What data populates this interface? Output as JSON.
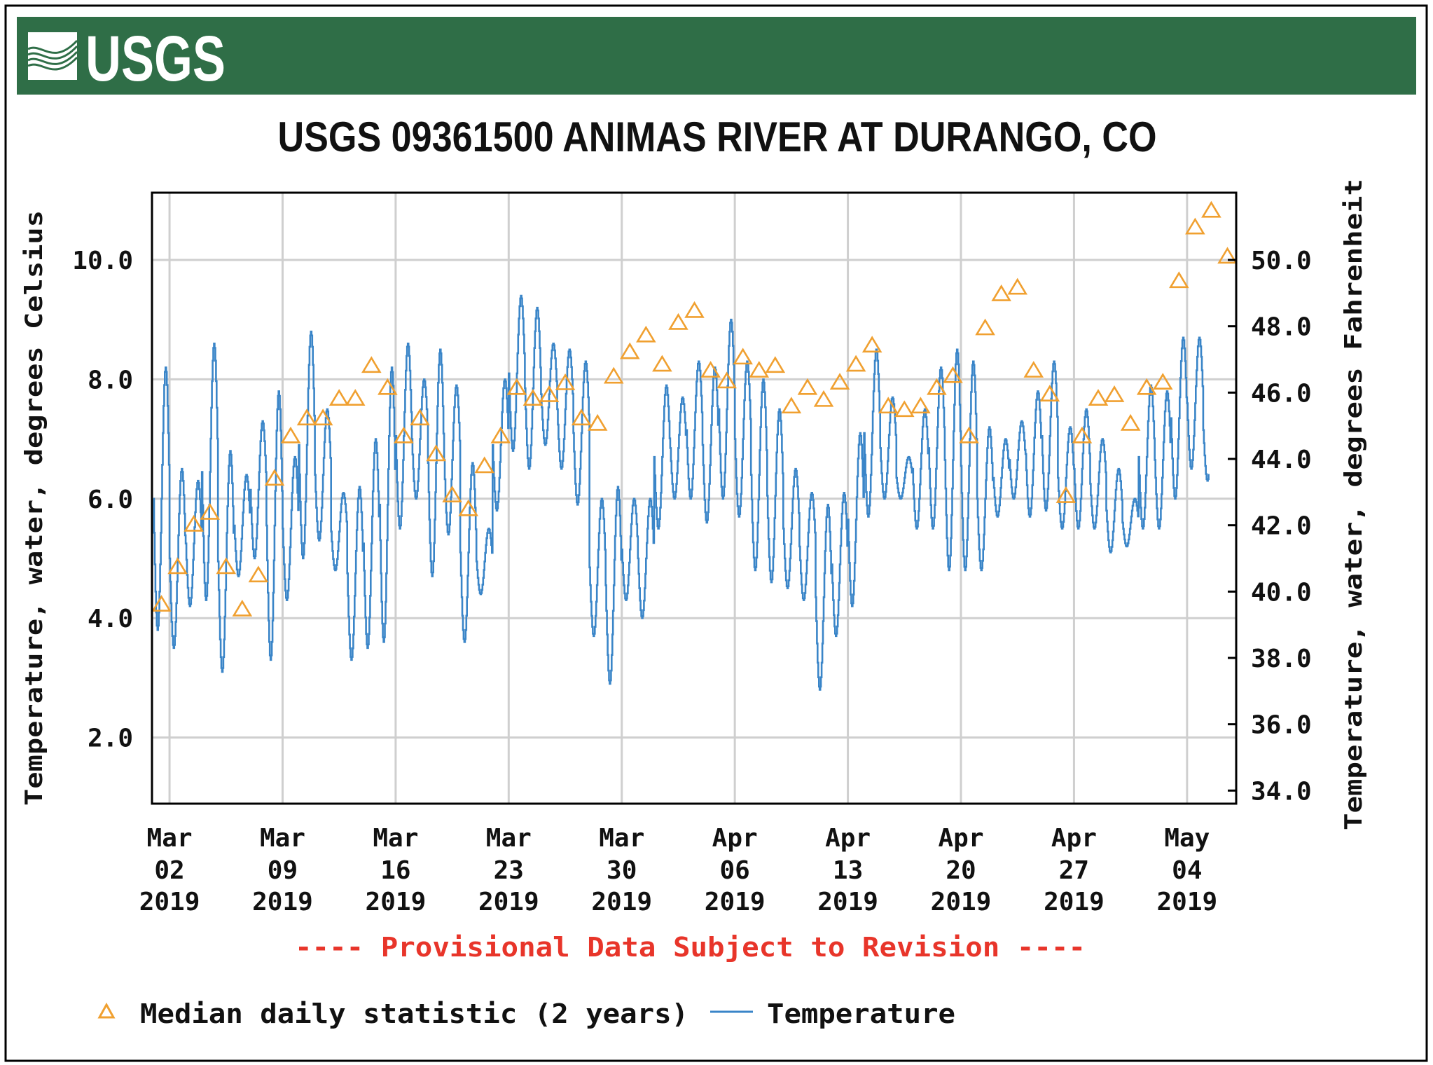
{
  "header": {
    "logo_text": "USGS",
    "banner_color": "#2f6e47"
  },
  "chart_data": {
    "type": "line",
    "title": "USGS 09361500 ANIMAS RIVER AT DURANGO, CO",
    "ylabel": "Temperature, water, degrees Celsius",
    "ylabel_right": "Temperature, water, degrees Fahrenheit",
    "ylim": [
      0.88,
      11.12
    ],
    "yticks": [
      "2.0",
      "4.0",
      "6.0",
      "8.0",
      "10.0"
    ],
    "yticks_right": [
      "34.0",
      "36.0",
      "38.0",
      "40.0",
      "42.0",
      "44.0",
      "46.0",
      "48.0",
      "50.0"
    ],
    "grid": true,
    "x_start_date": "2019-03-01",
    "xticks": [
      {
        "month": "Mar",
        "day": "02",
        "year": "2019",
        "day_offset": 1
      },
      {
        "month": "Mar",
        "day": "09",
        "year": "2019",
        "day_offset": 8
      },
      {
        "month": "Mar",
        "day": "16",
        "year": "2019",
        "day_offset": 15
      },
      {
        "month": "Mar",
        "day": "23",
        "year": "2019",
        "day_offset": 22
      },
      {
        "month": "Mar",
        "day": "30",
        "year": "2019",
        "day_offset": 29
      },
      {
        "month": "Apr",
        "day": "06",
        "year": "2019",
        "day_offset": 36
      },
      {
        "month": "Apr",
        "day": "13",
        "year": "2019",
        "day_offset": 43
      },
      {
        "month": "Apr",
        "day": "20",
        "year": "2019",
        "day_offset": 50
      },
      {
        "month": "Apr",
        "day": "27",
        "year": "2019",
        "day_offset": 57
      },
      {
        "month": "May",
        "day": "04",
        "year": "2019",
        "day_offset": 64
      }
    ],
    "series": [
      {
        "name": "Temperature",
        "color": "#3a85c8",
        "note": "daily min / max of 15-minute values, Mar 01 to May 06",
        "daily_min": [
          3.8,
          3.5,
          4.2,
          4.3,
          3.1,
          4.7,
          5.0,
          3.3,
          4.3,
          5.0,
          5.3,
          4.8,
          3.3,
          3.5,
          3.6,
          5.5,
          6.0,
          4.7,
          5.4,
          3.6,
          4.4,
          5.8,
          6.8,
          6.5,
          6.9,
          6.5,
          5.9,
          3.7,
          2.9,
          4.3,
          4.0,
          5.5,
          6.0,
          6.0,
          5.6,
          6.0,
          5.7,
          4.8,
          4.6,
          4.5,
          4.3,
          2.8,
          3.7,
          4.2,
          5.7,
          6.0,
          6.0,
          5.5,
          5.5,
          4.8,
          4.8,
          4.8,
          5.7,
          6.0,
          5.7,
          5.8,
          5.5,
          5.5,
          5.5,
          5.1,
          5.2,
          5.5,
          5.5,
          6.0,
          6.5,
          6.3,
          6.8
        ],
        "daily_max": [
          8.2,
          6.5,
          6.3,
          8.6,
          6.8,
          6.4,
          7.3,
          7.8,
          6.7,
          8.8,
          7.5,
          6.1,
          6.2,
          7.0,
          8.2,
          8.6,
          8.0,
          8.5,
          7.9,
          6.6,
          5.5,
          8.0,
          9.4,
          9.2,
          8.6,
          8.5,
          8.3,
          6.0,
          6.2,
          6.0,
          6.0,
          7.9,
          7.7,
          8.3,
          8.2,
          9.0,
          8.3,
          8.0,
          7.5,
          6.5,
          6.1,
          5.9,
          6.1,
          7.1,
          8.5,
          7.7,
          6.7,
          7.5,
          8.2,
          8.5,
          8.3,
          7.2,
          7.0,
          7.3,
          7.8,
          8.3,
          7.2,
          7.5,
          7.0,
          6.5,
          6.0,
          7.9,
          7.8,
          8.7,
          8.7,
          8.0,
          7.8
        ]
      },
      {
        "name": "Median daily statistic (2 years)",
        "color": "#f0a030",
        "marker": "triangle",
        "values": [
          4.23,
          4.86,
          5.57,
          5.77,
          4.86,
          4.15,
          4.72,
          6.34,
          7.05,
          7.35,
          7.35,
          7.68,
          7.68,
          8.23,
          7.86,
          7.05,
          7.35,
          6.75,
          6.06,
          5.83,
          6.55,
          7.05,
          7.86,
          7.68,
          7.74,
          7.94,
          7.35,
          7.26,
          8.05,
          8.46,
          8.74,
          8.25,
          8.95,
          9.15,
          8.15,
          7.97,
          8.37,
          8.15,
          8.23,
          7.55,
          7.86,
          7.66,
          7.95,
          8.25,
          8.57,
          7.55,
          7.49,
          7.55,
          7.86,
          8.06,
          7.05,
          8.86,
          9.43,
          9.54,
          8.15,
          7.75,
          6.05,
          7.05,
          7.68,
          7.74,
          7.26,
          7.86,
          7.95,
          9.65,
          10.55,
          10.83,
          10.06
        ]
      }
    ],
    "annotation": "---- Provisional Data Subject to Revision ----",
    "annotation_color": "#e8352a",
    "legend": {
      "placement": "bottom-left",
      "items": [
        {
          "label": "Median daily statistic (2 years)",
          "symbol": "triangle"
        },
        {
          "label": "Temperature",
          "symbol": "line"
        }
      ]
    }
  }
}
